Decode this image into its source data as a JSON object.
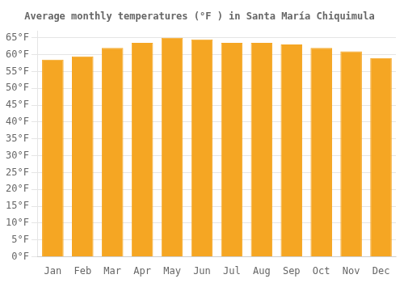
{
  "chart_data": {
    "type": "bar",
    "title": "Average monthly temperatures (°F ) in Santa María Chiquimula",
    "categories": [
      "Jan",
      "Feb",
      "Mar",
      "Apr",
      "May",
      "Jun",
      "Jul",
      "Aug",
      "Sep",
      "Oct",
      "Nov",
      "Dec"
    ],
    "values": [
      58.5,
      59.5,
      62.0,
      63.5,
      65.0,
      64.5,
      63.5,
      63.5,
      63.0,
      62.0,
      61.0,
      59.0
    ],
    "color": "#F5A623",
    "ylim": [
      0,
      67
    ],
    "yticks": [
      {
        "value": 0,
        "label": "0°F"
      },
      {
        "value": 5,
        "label": "5°F"
      },
      {
        "value": 10,
        "label": "10°F"
      },
      {
        "value": 15,
        "label": "15°F"
      },
      {
        "value": 20,
        "label": "20°F"
      },
      {
        "value": 25,
        "label": "25°F"
      },
      {
        "value": 30,
        "label": "30°F"
      },
      {
        "value": 35,
        "label": "35°F"
      },
      {
        "value": 40,
        "label": "40°F"
      },
      {
        "value": 45,
        "label": "45°F"
      },
      {
        "value": 50,
        "label": "50°F"
      },
      {
        "value": 55,
        "label": "55°F"
      },
      {
        "value": 60,
        "label": "60°F"
      },
      {
        "value": 65,
        "label": "65°F"
      }
    ],
    "grid": true
  }
}
